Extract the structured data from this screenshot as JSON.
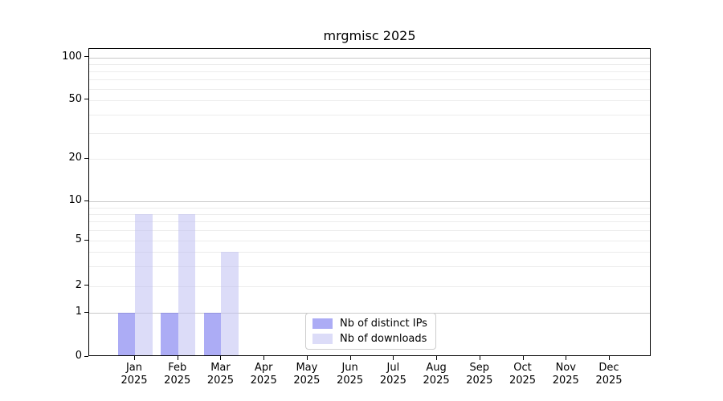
{
  "chart_data": {
    "type": "bar",
    "title": "mrgmisc 2025",
    "categories": [
      "Jan 2025",
      "Feb 2025",
      "Mar 2025",
      "Apr 2025",
      "May 2025",
      "Jun 2025",
      "Jul 2025",
      "Aug 2025",
      "Sep 2025",
      "Oct 2025",
      "Nov 2025",
      "Dec 2025"
    ],
    "series": [
      {
        "name": "Nb of distinct IPs",
        "color": "rgba(104,104,236,0.55)",
        "values": [
          1,
          1,
          1,
          0,
          0,
          0,
          0,
          0,
          0,
          0,
          0,
          0
        ]
      },
      {
        "name": "Nb of downloads",
        "color": "rgba(192,192,243,0.55)",
        "values": [
          8,
          8,
          4,
          0,
          0,
          0,
          0,
          0,
          0,
          0,
          0,
          0
        ]
      }
    ],
    "yticks": [
      0,
      1,
      2,
      5,
      10,
      20,
      50,
      100
    ],
    "gridlines": {
      "major": [
        1,
        10,
        100
      ],
      "minor": [
        2,
        3,
        4,
        5,
        6,
        7,
        8,
        9,
        20,
        30,
        40,
        50,
        60,
        70,
        80,
        90
      ]
    },
    "yscale": "symlog",
    "ylim": [
      0,
      115
    ],
    "xlabel": "",
    "ylabel": "",
    "grid": true,
    "legend_position": "lower center"
  },
  "colors": {
    "major_grid": "#c9c9c9",
    "minor_grid": "#ececec",
    "axis": "#000000",
    "legend_border": "#cccccc",
    "background": "#ffffff"
  }
}
